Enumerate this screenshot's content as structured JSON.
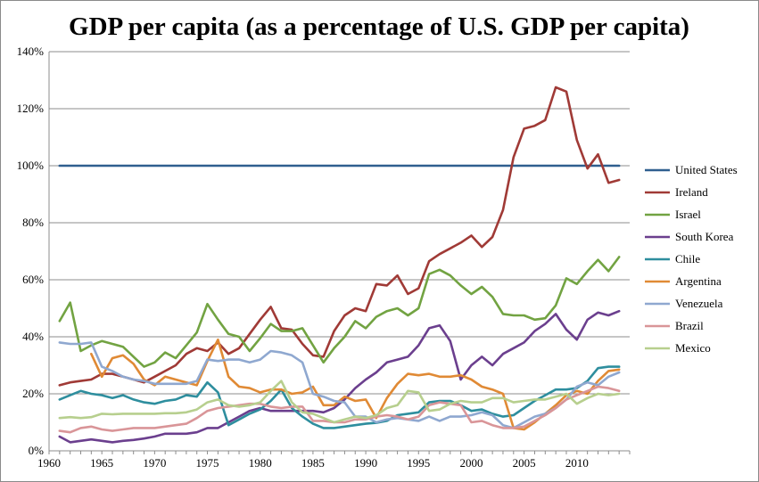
{
  "chart_data": {
    "type": "line",
    "title": "GDP per capita (as a percentage of U.S. GDP per capita)",
    "xlabel": "",
    "ylabel": "",
    "xlim": [
      1960,
      2015
    ],
    "ylim": [
      0,
      140
    ],
    "x_ticks": [
      1960,
      1965,
      1970,
      1975,
      1980,
      1985,
      1990,
      1995,
      2000,
      2005,
      2010
    ],
    "y_ticks": [
      "0%",
      "20%",
      "40%",
      "60%",
      "80%",
      "100%",
      "120%",
      "140%"
    ],
    "grid": true,
    "legend_position": "right",
    "x": [
      1961,
      1962,
      1963,
      1964,
      1965,
      1966,
      1967,
      1968,
      1969,
      1970,
      1971,
      1972,
      1973,
      1974,
      1975,
      1976,
      1977,
      1978,
      1979,
      1980,
      1981,
      1982,
      1983,
      1984,
      1985,
      1986,
      1987,
      1988,
      1989,
      1990,
      1991,
      1992,
      1993,
      1994,
      1995,
      1996,
      1997,
      1998,
      1999,
      2000,
      2001,
      2002,
      2003,
      2004,
      2005,
      2006,
      2007,
      2008,
      2009,
      2010,
      2011,
      2012,
      2013,
      2014
    ],
    "series": [
      {
        "name": "United States",
        "color": "#2F5F8F",
        "values": [
          100,
          100,
          100,
          100,
          100,
          100,
          100,
          100,
          100,
          100,
          100,
          100,
          100,
          100,
          100,
          100,
          100,
          100,
          100,
          100,
          100,
          100,
          100,
          100,
          100,
          100,
          100,
          100,
          100,
          100,
          100,
          100,
          100,
          100,
          100,
          100,
          100,
          100,
          100,
          100,
          100,
          100,
          100,
          100,
          100,
          100,
          100,
          100,
          100,
          100,
          100,
          100,
          100,
          100
        ]
      },
      {
        "name": "Ireland",
        "color": "#A03A36",
        "values": [
          23,
          24,
          24.5,
          25,
          27,
          27,
          26,
          25,
          24,
          26,
          28,
          30,
          34,
          36,
          35,
          38,
          34,
          36,
          41,
          46,
          50.5,
          43,
          42.5,
          37.5,
          33.5,
          33,
          42,
          47.5,
          50,
          49,
          58.5,
          58,
          61.5,
          55,
          57,
          66.5,
          69,
          71,
          73,
          75.5,
          71.5,
          75,
          84.5,
          103,
          113,
          114,
          116,
          127.5,
          126,
          109,
          99,
          104,
          94,
          95
        ]
      },
      {
        "name": "Israel",
        "color": "#72A342",
        "values": [
          45.5,
          52,
          35,
          37,
          38.5,
          37.5,
          36.5,
          33,
          29.5,
          31,
          34.5,
          32.5,
          37,
          41.5,
          51.5,
          46,
          41,
          40,
          35,
          39.5,
          44.5,
          42,
          42,
          43,
          37,
          31,
          36,
          40,
          45.5,
          43,
          47,
          49,
          50,
          47.5,
          50,
          62,
          63.5,
          61.5,
          58,
          55,
          57.5,
          54,
          48,
          47.5,
          47.5,
          46,
          46.5,
          51,
          60.5,
          58.5,
          63,
          67,
          63,
          68
        ]
      },
      {
        "name": "South Korea",
        "color": "#6B3F8E",
        "values": [
          5,
          3,
          3.5,
          4,
          3.5,
          3,
          3.5,
          3.8,
          4.3,
          5,
          6,
          6,
          6,
          6.5,
          8,
          8,
          10,
          12,
          14,
          15,
          14,
          14,
          14,
          14,
          14,
          13.5,
          15,
          18,
          22,
          25,
          27.5,
          31,
          32,
          33,
          37,
          43,
          44,
          38.5,
          25,
          30,
          33,
          30,
          34,
          36,
          38,
          42,
          44.5,
          48,
          42.5,
          39,
          46,
          48.5,
          47.5,
          49
        ]
      },
      {
        "name": "Chile",
        "color": "#2E8E9E",
        "values": [
          18,
          19.5,
          21,
          20,
          19.5,
          18.5,
          19.5,
          18,
          17,
          16.5,
          17.5,
          18,
          19.5,
          19,
          24,
          20.5,
          9,
          11,
          13,
          14.5,
          17.5,
          21.5,
          15,
          12,
          9.5,
          8,
          8,
          8.5,
          9,
          9.5,
          9.8,
          10.5,
          12.5,
          13,
          13.5,
          17,
          17.5,
          17.5,
          16,
          14,
          14.5,
          13,
          12,
          12.5,
          15,
          17.5,
          19.5,
          21.5,
          21.5,
          22,
          24.5,
          29,
          29.5,
          29.5
        ]
      },
      {
        "name": "Argentina",
        "color": "#E08A35",
        "values": [
          null,
          null,
          null,
          34,
          26,
          32.5,
          33.5,
          30.5,
          25,
          23,
          26,
          25,
          24,
          23,
          31.5,
          39,
          26,
          22.5,
          22,
          20.5,
          21.5,
          21.5,
          20,
          20.5,
          22.5,
          16,
          16,
          19,
          17.5,
          18,
          11.5,
          18.5,
          23.5,
          27,
          26.5,
          27,
          26,
          26,
          26.5,
          25,
          22.5,
          21.5,
          20,
          8,
          7.5,
          10,
          13,
          16,
          19.5,
          21,
          20,
          24.5,
          28,
          28.5
        ]
      },
      {
        "name": "Venezuela",
        "color": "#8FA8D0",
        "values": [
          38,
          37.5,
          37.5,
          38,
          29.5,
          28,
          26,
          25,
          24.5,
          23.5,
          23.5,
          23.5,
          23.5,
          24.5,
          32,
          31.5,
          32,
          32,
          31,
          32,
          35,
          34.5,
          33.5,
          31,
          20,
          19,
          17.5,
          17,
          12,
          12,
          10,
          11,
          11.5,
          11,
          10.5,
          12,
          10.5,
          12,
          12,
          12.5,
          13.5,
          12.5,
          9,
          8,
          10,
          12,
          13,
          15,
          18,
          22.5,
          24,
          23,
          26,
          27.5
        ]
      },
      {
        "name": "Brazil",
        "color": "#D99598",
        "values": [
          7,
          6.5,
          8,
          8.5,
          7.5,
          7,
          7.5,
          8,
          8,
          8,
          8.5,
          9,
          9.5,
          11.5,
          14,
          15,
          15.5,
          16,
          16.5,
          16.5,
          15.5,
          15,
          15.5,
          15.5,
          10.5,
          10.5,
          10,
          10,
          11,
          11,
          12,
          12.5,
          12,
          11,
          12,
          16,
          17,
          16.5,
          16,
          10,
          10.5,
          9,
          8,
          8,
          8.5,
          10.5,
          12.5,
          15,
          18,
          19.5,
          21,
          22.5,
          22,
          21
        ]
      },
      {
        "name": "Mexico",
        "color": "#B7CF8E",
        "values": [
          11.5,
          11.8,
          11.5,
          11.8,
          13,
          12.8,
          13,
          13,
          13,
          13,
          13.2,
          13.2,
          13.5,
          14.5,
          17,
          18,
          16,
          15.5,
          16,
          17,
          21,
          24.5,
          17,
          13.5,
          13,
          11.5,
          10,
          11,
          12,
          11.5,
          12.5,
          15,
          16,
          21,
          20.5,
          14,
          14.5,
          16.5,
          17.5,
          17,
          17,
          18.5,
          18.5,
          17,
          17.5,
          18,
          18,
          19,
          20,
          16.5,
          18.5,
          20,
          19.5,
          20
        ]
      }
    ]
  }
}
